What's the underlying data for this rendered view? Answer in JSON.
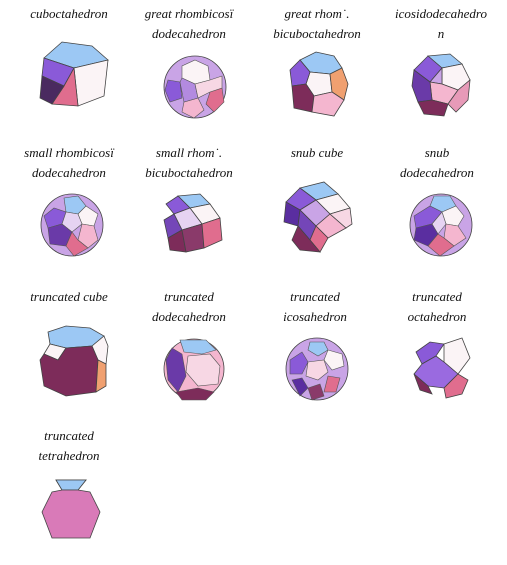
{
  "solids": [
    {
      "name": "cuboctahedron"
    },
    {
      "name": "great rhombicosï\ndodecahedron"
    },
    {
      "name": "great rhom˙.\nbicuboctahedron"
    },
    {
      "name": "icosidodecahedro\nn"
    },
    {
      "name": "small rhombicosï\ndodecahedron"
    },
    {
      "name": "small rhom˙.\nbicuboctahedron"
    },
    {
      "name": "snub cube"
    },
    {
      "name": "snub\ndodecahedron"
    },
    {
      "name": "truncated cube"
    },
    {
      "name": "truncated\ndodecahedron"
    },
    {
      "name": "truncated\nicosahedron"
    },
    {
      "name": "truncated\noctahedron"
    },
    {
      "name": "truncated\ntetrahedron"
    }
  ],
  "colors": {
    "blue": "#9cc8f4",
    "violet": "#8a5ad8",
    "pink": "#e06d8e",
    "rose": "#f4b6cf",
    "maroon": "#7d2c5a",
    "orange": "#f0a070",
    "white": "#fbf4f6"
  }
}
